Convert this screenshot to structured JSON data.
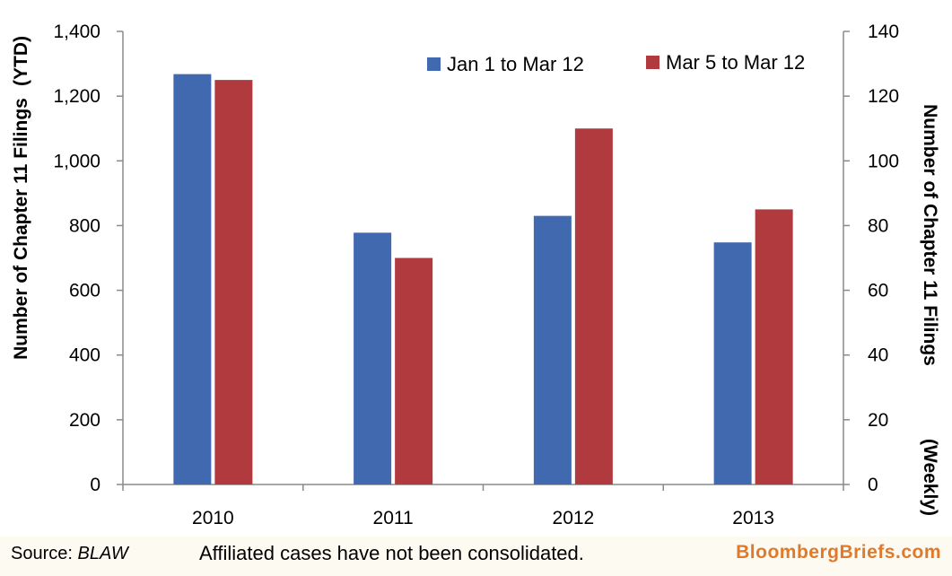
{
  "chart_data": {
    "type": "bar",
    "categories": [
      "2010",
      "2011",
      "2012",
      "2013"
    ],
    "series": [
      {
        "name": "Jan 1 to Mar 12",
        "axis": "left",
        "color": "#4169b0",
        "values": [
          1268,
          778,
          830,
          748
        ]
      },
      {
        "name": "Mar 5 to Mar 12",
        "axis": "right",
        "color": "#b13a3f",
        "values": [
          125,
          70,
          110,
          85
        ]
      }
    ],
    "ylabel_left": "Number of Chapter 11 Filings",
    "ylabel_left_suffix": "(YTD)",
    "ylabel_right": "Number of Chapter 11 Filings",
    "ylabel_right_suffix": "(Weekly)",
    "ylim_left": [
      0,
      1400
    ],
    "ylim_right": [
      0,
      140
    ],
    "yticks_left": [
      "0",
      "200",
      "400",
      "600",
      "800",
      "1,000",
      "1,200",
      "1,400"
    ],
    "yticks_right": [
      "0",
      "20",
      "40",
      "60",
      "80",
      "100",
      "120",
      "140"
    ],
    "grid": false,
    "legend_position": "top-right"
  },
  "footer": {
    "source_label": "Source: ",
    "source_name": "BLAW",
    "note": "Affiliated cases have not been consolidated.",
    "brand": "BloombergBriefs.com"
  }
}
